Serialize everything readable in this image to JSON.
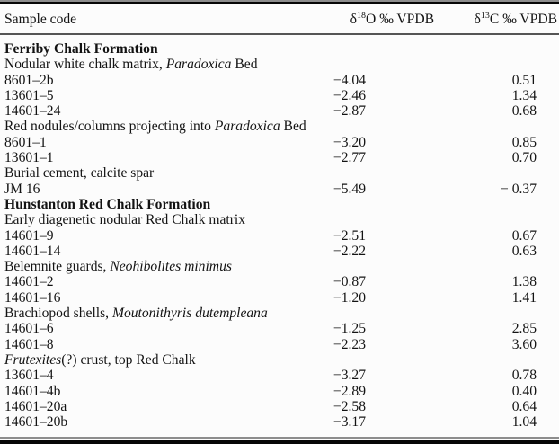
{
  "table": {
    "header": {
      "col1": "Sample code",
      "d18o": {
        "prefix": "δ",
        "sup": "18",
        "suffix": "O ‰ VPDB"
      },
      "d13c": {
        "prefix": "δ",
        "sup": "13",
        "suffix": "C ‰ VPDB"
      }
    },
    "rows": [
      {
        "type": "section",
        "segments": [
          {
            "text": "Ferriby Chalk Formation"
          }
        ]
      },
      {
        "type": "label",
        "segments": [
          {
            "text": "Nodular white chalk matrix, "
          },
          {
            "text": "Paradoxica",
            "italic": true
          },
          {
            "text": " Bed"
          }
        ]
      },
      {
        "type": "data",
        "code": "8601–2b",
        "d18o": "−4.04",
        "d13c": "0.51"
      },
      {
        "type": "data",
        "code": "13601–5",
        "d18o": "−2.46",
        "d13c": "1.34"
      },
      {
        "type": "data",
        "code": "14601–24",
        "d18o": "−2.87",
        "d13c": "0.68"
      },
      {
        "type": "label",
        "segments": [
          {
            "text": "Red nodules/columns projecting into "
          },
          {
            "text": "Paradoxica",
            "italic": true
          },
          {
            "text": " Bed"
          }
        ]
      },
      {
        "type": "data",
        "code": "8601–1",
        "d18o": "−3.20",
        "d13c": "0.85"
      },
      {
        "type": "data",
        "code": "13601–1",
        "d18o": "−2.77",
        "d13c": "0.70"
      },
      {
        "type": "label",
        "segments": [
          {
            "text": "Burial cement, calcite spar"
          }
        ]
      },
      {
        "type": "data",
        "code": "JM 16",
        "d18o": "−5.49",
        "d13c": "− 0.37"
      },
      {
        "type": "section",
        "segments": [
          {
            "text": "Hunstanton Red Chalk Formation"
          }
        ]
      },
      {
        "type": "label",
        "segments": [
          {
            "text": "Early diagenetic nodular Red Chalk matrix"
          }
        ]
      },
      {
        "type": "data",
        "code": "14601–9",
        "d18o": "−2.51",
        "d13c": "0.67"
      },
      {
        "type": "data",
        "code": "14601–14",
        "d18o": "−2.22",
        "d13c": "0.63"
      },
      {
        "type": "label",
        "segments": [
          {
            "text": "Belemnite guards, "
          },
          {
            "text": "Neohibolites minimus",
            "italic": true
          }
        ]
      },
      {
        "type": "data",
        "code": "14601–2",
        "d18o": "−0.87",
        "d13c": "1.38"
      },
      {
        "type": "data",
        "code": "14601–16",
        "d18o": "−1.20",
        "d13c": "1.41"
      },
      {
        "type": "label",
        "segments": [
          {
            "text": "Brachiopod shells, "
          },
          {
            "text": "Moutonithyris dutempleana",
            "italic": true
          }
        ]
      },
      {
        "type": "data",
        "code": "14601–6",
        "d18o": "−1.25",
        "d13c": "2.85"
      },
      {
        "type": "data",
        "code": "14601–8",
        "d18o": "−2.23",
        "d13c": "3.60"
      },
      {
        "type": "label",
        "segments": [
          {
            "text": "Frutexites",
            "italic": true
          },
          {
            "text": "(?) crust, top Red Chalk"
          }
        ]
      },
      {
        "type": "data",
        "code": "13601–4",
        "d18o": "−3.27",
        "d13c": "0.78"
      },
      {
        "type": "data",
        "code": "14601–4b",
        "d18o": "−2.89",
        "d13c": "0.40"
      },
      {
        "type": "data",
        "code": "14601–20a",
        "d18o": "−2.58",
        "d13c": "0.64"
      },
      {
        "type": "data",
        "code": "14601–20b",
        "d18o": "−3.17",
        "d13c": "1.04"
      }
    ],
    "colors": {
      "rule_dark": "#060606",
      "rule_gray": "#8d8d8d",
      "text": "#131313",
      "background": "#fcfcfc"
    }
  }
}
